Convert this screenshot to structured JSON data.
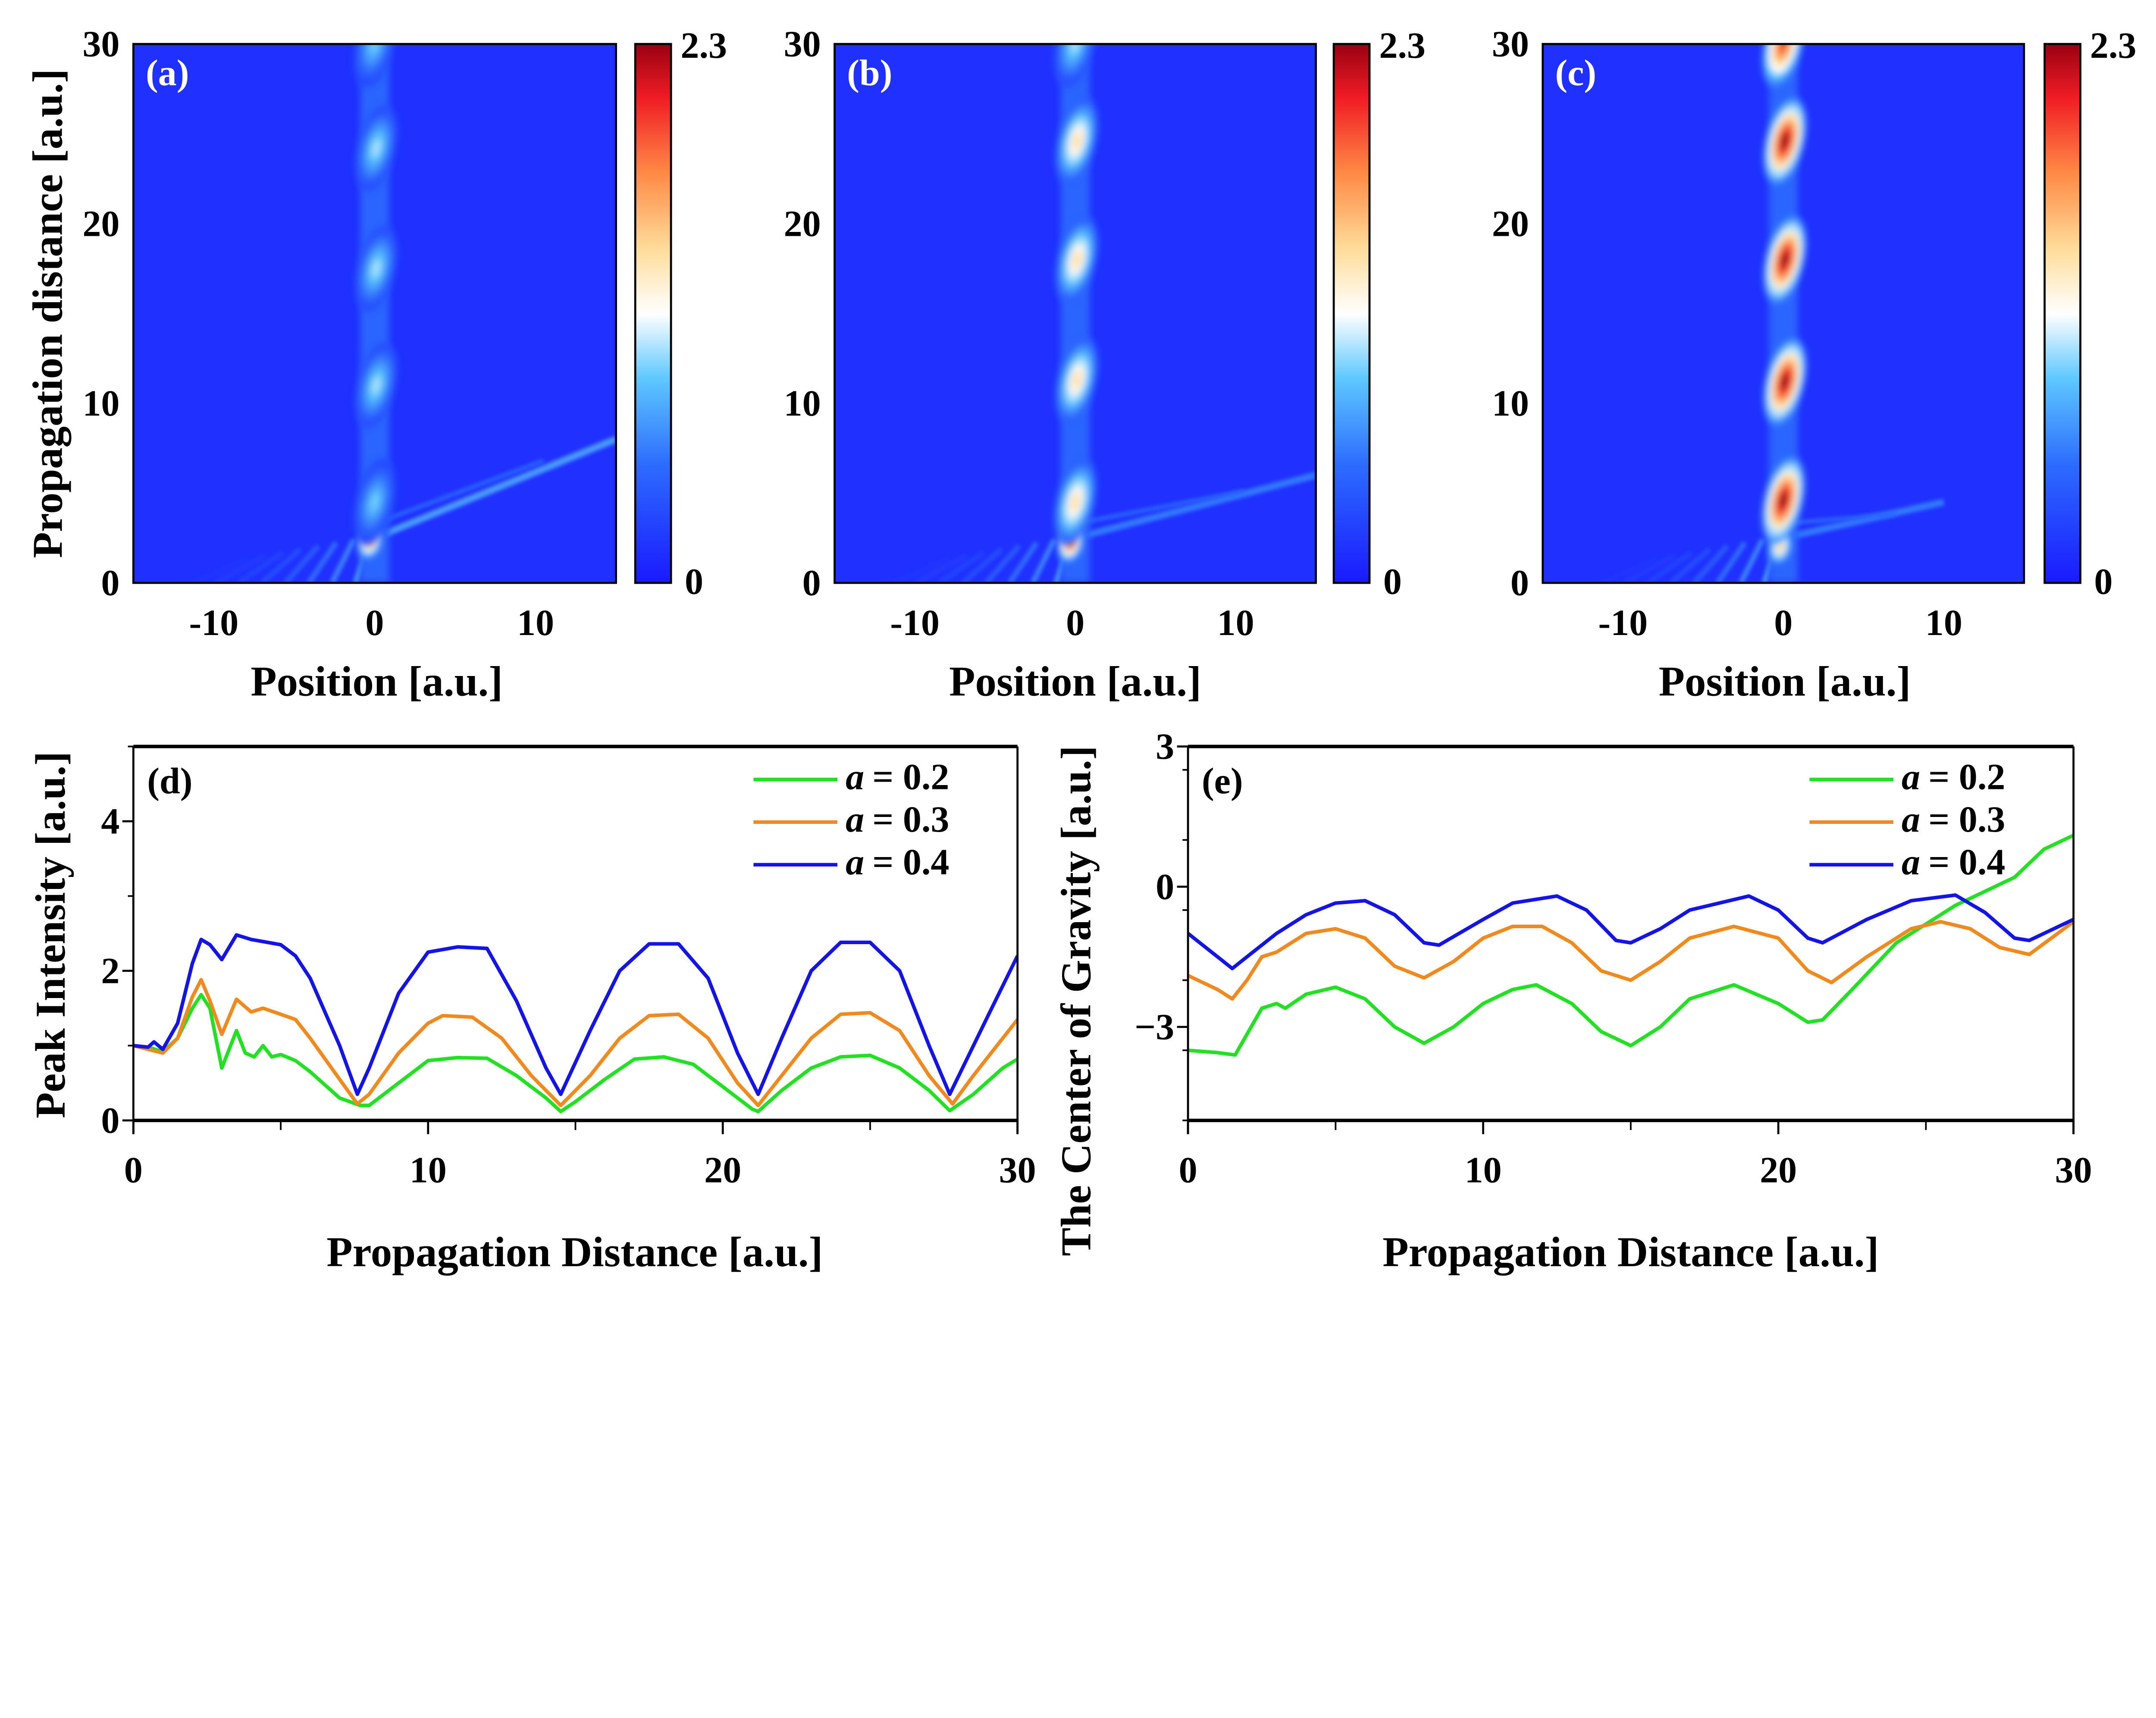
{
  "chart_data": [
    {
      "type": "heatmap",
      "panel_label": "(a)",
      "xlabel": "Position [a.u.]",
      "ylabel": "Propagation distance [a.u.]",
      "xlim": [
        -15,
        15
      ],
      "ylim": [
        0,
        30
      ],
      "xticks": [
        "-10",
        "0",
        "10"
      ],
      "xtick_values": [
        -10,
        0,
        10
      ],
      "yticks": [
        "0",
        "10",
        "20",
        "30"
      ],
      "ytick_values": [
        0,
        10,
        20,
        30
      ],
      "colorbar": {
        "min_label": "0",
        "max_label": "2.3",
        "range": [
          0,
          2.3
        ]
      },
      "breather_peaks": [
        {
          "z": 2.3,
          "x": -0.3,
          "value": 1.7
        },
        {
          "z": 4.5,
          "x": 0,
          "value": 0.9
        },
        {
          "z": 11,
          "x": 0.1,
          "value": 1.0
        },
        {
          "z": 17.5,
          "x": 0.1,
          "value": 1.0
        },
        {
          "z": 24.2,
          "x": 0.1,
          "value": 1.0
        },
        {
          "z": 30,
          "x": 0,
          "value": 0.9
        }
      ]
    },
    {
      "type": "heatmap",
      "panel_label": "(b)",
      "xlabel": "Position [a.u.]",
      "xlim": [
        -15,
        15
      ],
      "ylim": [
        0,
        30
      ],
      "xticks": [
        "-10",
        "0",
        "10"
      ],
      "xtick_values": [
        -10,
        0,
        10
      ],
      "yticks": [
        "0",
        "10",
        "20",
        "30"
      ],
      "ytick_values": [
        0,
        10,
        20,
        30
      ],
      "colorbar": {
        "min_label": "0",
        "max_label": "2.3",
        "range": [
          0,
          2.3
        ]
      },
      "breather_peaks": [
        {
          "z": 2.2,
          "x": -0.3,
          "value": 2.0
        },
        {
          "z": 4.5,
          "x": 0,
          "value": 1.4
        },
        {
          "z": 11.3,
          "x": 0.1,
          "value": 1.4
        },
        {
          "z": 18,
          "x": 0.1,
          "value": 1.4
        },
        {
          "z": 24.6,
          "x": 0.1,
          "value": 1.4
        },
        {
          "z": 30,
          "x": 0,
          "value": 1.0
        }
      ]
    },
    {
      "type": "heatmap",
      "panel_label": "(c)",
      "xlabel": "Position [a.u.]",
      "xlim": [
        -15,
        15
      ],
      "ylim": [
        0,
        30
      ],
      "xticks": [
        "-10",
        "0",
        "10"
      ],
      "xtick_values": [
        -10,
        0,
        10
      ],
      "yticks": [
        "0",
        "10",
        "20",
        "30"
      ],
      "ytick_values": [
        0,
        10,
        20,
        30
      ],
      "colorbar": {
        "min_label": "0",
        "max_label": "2.3",
        "range": [
          0,
          2.3
        ]
      },
      "breather_peaks": [
        {
          "z": 2.0,
          "x": -0.2,
          "value": 1.5
        },
        {
          "z": 4.6,
          "x": 0,
          "value": 2.3
        },
        {
          "z": 11.2,
          "x": 0.1,
          "value": 2.3
        },
        {
          "z": 18,
          "x": 0.1,
          "value": 2.3
        },
        {
          "z": 24.6,
          "x": 0.1,
          "value": 2.3
        },
        {
          "z": 30,
          "x": 0,
          "value": 2.0
        }
      ]
    },
    {
      "type": "line",
      "panel_label": "(d)",
      "xlabel": "Propagation Distance [a.u.]",
      "ylabel": "Peak Intensity [a.u.]",
      "xlim": [
        0,
        30
      ],
      "ylim": [
        0,
        5
      ],
      "xticks": [
        "0",
        "10",
        "20",
        "30"
      ],
      "xtick_values": [
        0,
        10,
        20,
        30
      ],
      "yticks": [
        "0",
        "2",
        "4"
      ],
      "ytick_values": [
        0,
        2,
        4
      ],
      "legend_position": "top-right",
      "series": [
        {
          "param": "a",
          "value": "= 0.2",
          "color": "#22e022",
          "x": [
            0,
            0.5,
            1,
            1.5,
            2,
            2.3,
            2.6,
            3,
            3.3,
            3.5,
            3.8,
            4.1,
            4.4,
            4.7,
            5,
            5.5,
            6,
            7,
            7.7,
            8,
            9,
            10,
            11,
            12,
            13,
            14,
            14.5,
            15,
            16,
            17,
            18,
            19,
            20,
            21,
            21.2,
            22,
            23,
            24,
            25,
            26,
            27,
            27.7,
            28.5,
            29.5,
            30
          ],
          "y": [
            1.0,
            0.98,
            0.92,
            1.1,
            1.5,
            1.68,
            1.5,
            0.7,
            1.0,
            1.2,
            0.9,
            0.85,
            1.0,
            0.85,
            0.88,
            0.8,
            0.65,
            0.3,
            0.2,
            0.2,
            0.5,
            0.8,
            0.84,
            0.83,
            0.6,
            0.3,
            0.12,
            0.25,
            0.55,
            0.82,
            0.85,
            0.75,
            0.45,
            0.15,
            0.12,
            0.4,
            0.7,
            0.85,
            0.87,
            0.7,
            0.4,
            0.13,
            0.35,
            0.7,
            0.82
          ]
        },
        {
          "param": "a",
          "value": "= 0.3",
          "color": "#f08a1e",
          "x": [
            0,
            1,
            1.5,
            2,
            2.3,
            2.6,
            3,
            3.5,
            4,
            4.4,
            5,
            5.5,
            6,
            7,
            7.6,
            8,
            9,
            10,
            10.5,
            11.5,
            12.5,
            13.5,
            14.5,
            15.5,
            16.5,
            17.5,
            18.5,
            19.5,
            20.5,
            21.2,
            22,
            23,
            24,
            25,
            26,
            27,
            27.8,
            28.5,
            29.5,
            30
          ],
          "y": [
            1.0,
            0.9,
            1.1,
            1.65,
            1.88,
            1.6,
            1.15,
            1.62,
            1.45,
            1.5,
            1.42,
            1.35,
            1.1,
            0.55,
            0.22,
            0.35,
            0.9,
            1.3,
            1.4,
            1.38,
            1.1,
            0.6,
            0.2,
            0.6,
            1.1,
            1.4,
            1.42,
            1.1,
            0.5,
            0.2,
            0.6,
            1.1,
            1.42,
            1.44,
            1.2,
            0.6,
            0.22,
            0.6,
            1.1,
            1.35
          ]
        },
        {
          "param": "a",
          "value": "= 0.4",
          "color": "#1414e6",
          "x": [
            0,
            0.5,
            0.7,
            1,
            1.5,
            2,
            2.3,
            2.6,
            3,
            3.5,
            4,
            5,
            5.5,
            6,
            7,
            7.6,
            8,
            9,
            10,
            11,
            12,
            13,
            14,
            14.5,
            15.5,
            16.5,
            17.5,
            18.5,
            19.5,
            20.5,
            21.2,
            22,
            23,
            24,
            25,
            26,
            27,
            27.7,
            29,
            30
          ],
          "y": [
            1.0,
            0.98,
            1.05,
            0.95,
            1.3,
            2.1,
            2.42,
            2.35,
            2.15,
            2.48,
            2.42,
            2.35,
            2.2,
            1.9,
            1.0,
            0.35,
            0.7,
            1.7,
            2.25,
            2.32,
            2.3,
            1.6,
            0.7,
            0.35,
            1.2,
            2.0,
            2.36,
            2.36,
            1.9,
            0.9,
            0.35,
            1.1,
            2.0,
            2.38,
            2.38,
            2.0,
            1.0,
            0.35,
            1.4,
            2.2
          ]
        }
      ]
    },
    {
      "type": "line",
      "panel_label": "(e)",
      "xlabel": "Propagation Distance [a.u.]",
      "ylabel": "The Center of Gravity [a.u.]",
      "xlim": [
        0,
        30
      ],
      "ylim": [
        -5,
        3
      ],
      "xticks": [
        "0",
        "10",
        "20",
        "30"
      ],
      "xtick_values": [
        0,
        10,
        20,
        30
      ],
      "yticks": [
        "−3",
        "0",
        "3"
      ],
      "ytick_values": [
        -3,
        0,
        3
      ],
      "legend_position": "top-right",
      "series": [
        {
          "param": "a",
          "value": "= 0.2",
          "color": "#22e022",
          "x": [
            0,
            1,
            1.6,
            2.5,
            3,
            3.3,
            4,
            5,
            6,
            7,
            8,
            9,
            10,
            11,
            11.8,
            13,
            14,
            15,
            16,
            17,
            18.5,
            20,
            21,
            21.5,
            22.5,
            24,
            26,
            28,
            29,
            30
          ],
          "y": [
            -3.5,
            -3.55,
            -3.6,
            -2.6,
            -2.5,
            -2.6,
            -2.3,
            -2.15,
            -2.4,
            -3.0,
            -3.35,
            -3.0,
            -2.5,
            -2.2,
            -2.1,
            -2.5,
            -3.1,
            -3.4,
            -3.0,
            -2.4,
            -2.1,
            -2.5,
            -2.9,
            -2.85,
            -2.2,
            -1.2,
            -0.4,
            0.2,
            0.8,
            1.1
          ]
        },
        {
          "param": "a",
          "value": "= 0.3",
          "color": "#f08a1e",
          "x": [
            0,
            1,
            1.5,
            2,
            2.5,
            3,
            4,
            5,
            6,
            7,
            8,
            9,
            10,
            11,
            12,
            13,
            14,
            15,
            16,
            17,
            18.5,
            20,
            21,
            21.8,
            23,
            24.5,
            25.5,
            26.5,
            27.5,
            28.5,
            30
          ],
          "y": [
            -1.9,
            -2.2,
            -2.4,
            -2.0,
            -1.5,
            -1.4,
            -1.0,
            -0.9,
            -1.1,
            -1.7,
            -1.95,
            -1.6,
            -1.1,
            -0.85,
            -0.85,
            -1.2,
            -1.8,
            -2.0,
            -1.6,
            -1.1,
            -0.85,
            -1.1,
            -1.8,
            -2.05,
            -1.5,
            -0.9,
            -0.75,
            -0.9,
            -1.3,
            -1.45,
            -0.75
          ]
        },
        {
          "param": "a",
          "value": "= 0.4",
          "color": "#1414e6",
          "x": [
            0,
            1,
            1.5,
            2,
            3,
            4,
            5,
            6,
            7,
            8,
            8.5,
            10,
            11,
            12.5,
            13.5,
            14.5,
            15,
            16,
            17,
            19,
            20,
            21,
            21.5,
            23,
            24.5,
            26,
            27,
            28,
            28.5,
            30
          ],
          "y": [
            -1.0,
            -1.5,
            -1.75,
            -1.5,
            -1.0,
            -0.6,
            -0.35,
            -0.3,
            -0.6,
            -1.2,
            -1.25,
            -0.7,
            -0.35,
            -0.2,
            -0.5,
            -1.15,
            -1.2,
            -0.9,
            -0.5,
            -0.2,
            -0.5,
            -1.1,
            -1.2,
            -0.7,
            -0.3,
            -0.18,
            -0.55,
            -1.1,
            -1.15,
            -0.7
          ]
        }
      ]
    }
  ]
}
